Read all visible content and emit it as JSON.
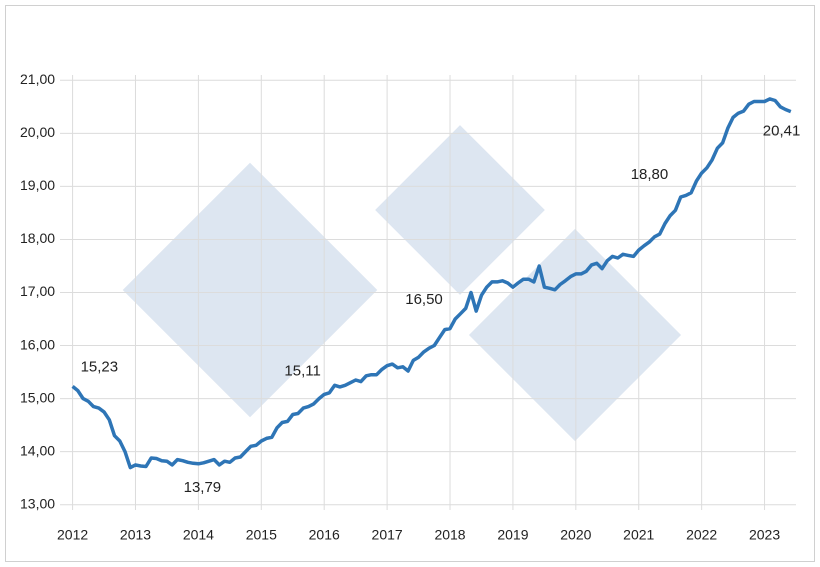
{
  "chart_data": {
    "type": "line",
    "x": [
      2012,
      2012.083,
      2012.167,
      2012.25,
      2012.333,
      2012.417,
      2012.5,
      2012.583,
      2012.667,
      2012.75,
      2012.833,
      2012.917,
      2013,
      2013.083,
      2013.167,
      2013.25,
      2013.333,
      2013.417,
      2013.5,
      2013.583,
      2013.667,
      2013.75,
      2013.833,
      2013.917,
      2014,
      2014.083,
      2014.167,
      2014.25,
      2014.333,
      2014.417,
      2014.5,
      2014.583,
      2014.667,
      2014.75,
      2014.833,
      2014.917,
      2015,
      2015.083,
      2015.167,
      2015.25,
      2015.333,
      2015.417,
      2015.5,
      2015.583,
      2015.667,
      2015.75,
      2015.833,
      2015.917,
      2016,
      2016.083,
      2016.167,
      2016.25,
      2016.333,
      2016.417,
      2016.5,
      2016.583,
      2016.667,
      2016.75,
      2016.833,
      2016.917,
      2017,
      2017.083,
      2017.167,
      2017.25,
      2017.333,
      2017.417,
      2017.5,
      2017.583,
      2017.667,
      2017.75,
      2017.833,
      2017.917,
      2018,
      2018.083,
      2018.167,
      2018.25,
      2018.333,
      2018.417,
      2018.5,
      2018.583,
      2018.667,
      2018.75,
      2018.833,
      2018.917,
      2019,
      2019.083,
      2019.167,
      2019.25,
      2019.333,
      2019.417,
      2019.5,
      2019.583,
      2019.667,
      2019.75,
      2019.833,
      2019.917,
      2020,
      2020.083,
      2020.167,
      2020.25,
      2020.333,
      2020.417,
      2020.5,
      2020.583,
      2020.667,
      2020.75,
      2020.833,
      2020.917,
      2021,
      2021.083,
      2021.167,
      2021.25,
      2021.333,
      2021.417,
      2021.5,
      2021.583,
      2021.667,
      2021.75,
      2021.833,
      2021.917,
      2022,
      2022.083,
      2022.167,
      2022.25,
      2022.333,
      2022.417,
      2022.5,
      2022.583,
      2022.667,
      2022.75,
      2022.833,
      2022.917,
      2023,
      2023.083,
      2023.167,
      2023.25,
      2023.333,
      2023.417
    ],
    "values": [
      15.23,
      15.15,
      15.0,
      14.95,
      14.85,
      14.82,
      14.75,
      14.6,
      14.3,
      14.2,
      14.0,
      13.7,
      13.75,
      13.73,
      13.72,
      13.88,
      13.87,
      13.83,
      13.82,
      13.75,
      13.85,
      13.83,
      13.8,
      13.78,
      13.77,
      13.79,
      13.82,
      13.85,
      13.75,
      13.82,
      13.8,
      13.88,
      13.9,
      14.0,
      14.1,
      14.12,
      14.2,
      14.25,
      14.27,
      14.45,
      14.55,
      14.57,
      14.7,
      14.72,
      14.82,
      14.85,
      14.9,
      15.0,
      15.08,
      15.11,
      15.25,
      15.22,
      15.25,
      15.3,
      15.35,
      15.32,
      15.43,
      15.45,
      15.45,
      15.55,
      15.62,
      15.65,
      15.58,
      15.6,
      15.52,
      15.72,
      15.78,
      15.88,
      15.95,
      16.0,
      16.15,
      16.3,
      16.32,
      16.5,
      16.6,
      16.7,
      17.0,
      16.65,
      16.95,
      17.1,
      17.2,
      17.2,
      17.22,
      17.18,
      17.1,
      17.18,
      17.25,
      17.25,
      17.2,
      17.5,
      17.1,
      17.08,
      17.05,
      17.15,
      17.22,
      17.3,
      17.35,
      17.35,
      17.4,
      17.52,
      17.55,
      17.45,
      17.6,
      17.68,
      17.65,
      17.72,
      17.7,
      17.68,
      17.8,
      17.88,
      17.95,
      18.05,
      18.1,
      18.3,
      18.45,
      18.55,
      18.8,
      18.83,
      18.88,
      19.1,
      19.25,
      19.35,
      19.5,
      19.72,
      19.82,
      20.1,
      20.3,
      20.38,
      20.42,
      20.55,
      20.6,
      20.6,
      20.6,
      20.65,
      20.62,
      20.5,
      20.45,
      20.41
    ],
    "color": "#2e75b6",
    "annotations": [
      {
        "x": 2012,
        "value": 15.23,
        "label": "15,23"
      },
      {
        "x": 2014.083,
        "value": 13.79,
        "label": "13,79"
      },
      {
        "x": 2016.083,
        "value": 15.11,
        "label": "15,11"
      },
      {
        "x": 2018.083,
        "value": 16.5,
        "label": "16,50"
      },
      {
        "x": 2021.667,
        "value": 18.8,
        "label": "18,80"
      },
      {
        "x": 2023.417,
        "value": 20.41,
        "label": "20,41"
      }
    ],
    "xlim": [
      2011.8,
      2023.5
    ],
    "xticks": [
      2012,
      2013,
      2014,
      2015,
      2016,
      2017,
      2018,
      2019,
      2020,
      2021,
      2022,
      2023
    ],
    "ylim": [
      12.9,
      21.1
    ],
    "yticks": [
      {
        "value": 13,
        "label": "13,00"
      },
      {
        "value": 14,
        "label": "14,00"
      },
      {
        "value": 15,
        "label": "15,00"
      },
      {
        "value": 16,
        "label": "16,00"
      },
      {
        "value": 17,
        "label": "17,00"
      },
      {
        "value": 18,
        "label": "18,00"
      },
      {
        "value": 19,
        "label": "19,00"
      },
      {
        "value": 20,
        "label": "20,00"
      },
      {
        "value": 21,
        "label": "21,00"
      }
    ],
    "grid": true
  }
}
